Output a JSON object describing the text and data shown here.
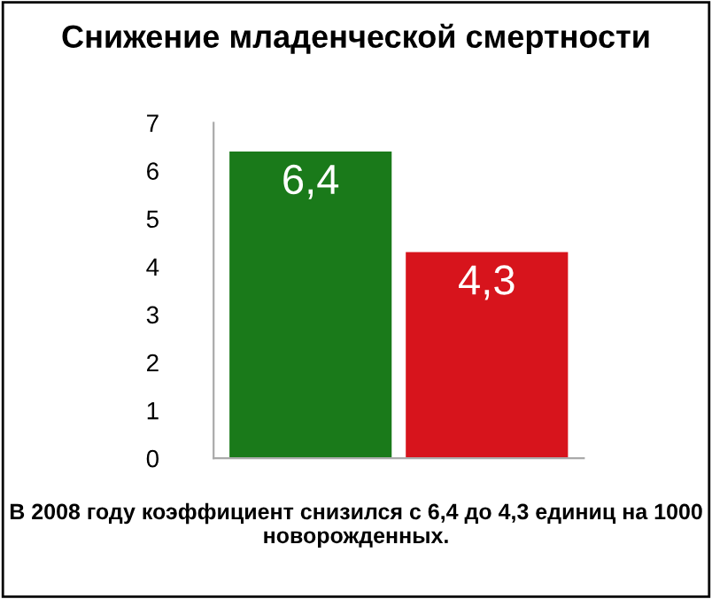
{
  "chart_data": {
    "type": "bar",
    "title": "Снижение младенческой смертности",
    "categories": [
      null,
      null
    ],
    "values": [
      6.4,
      4.3
    ],
    "colors": [
      "#1a7a1a",
      "#d7141c"
    ],
    "value_labels": [
      "6,4",
      "4,3"
    ],
    "ylim": [
      0,
      7
    ],
    "yticks": [
      0,
      1,
      2,
      3,
      4,
      5,
      6,
      7
    ],
    "grid": false,
    "annotations": [
      "В 2008 году коэффициент снизился с 6,4 до 4,3 единиц на 1000 новорожденных."
    ]
  }
}
